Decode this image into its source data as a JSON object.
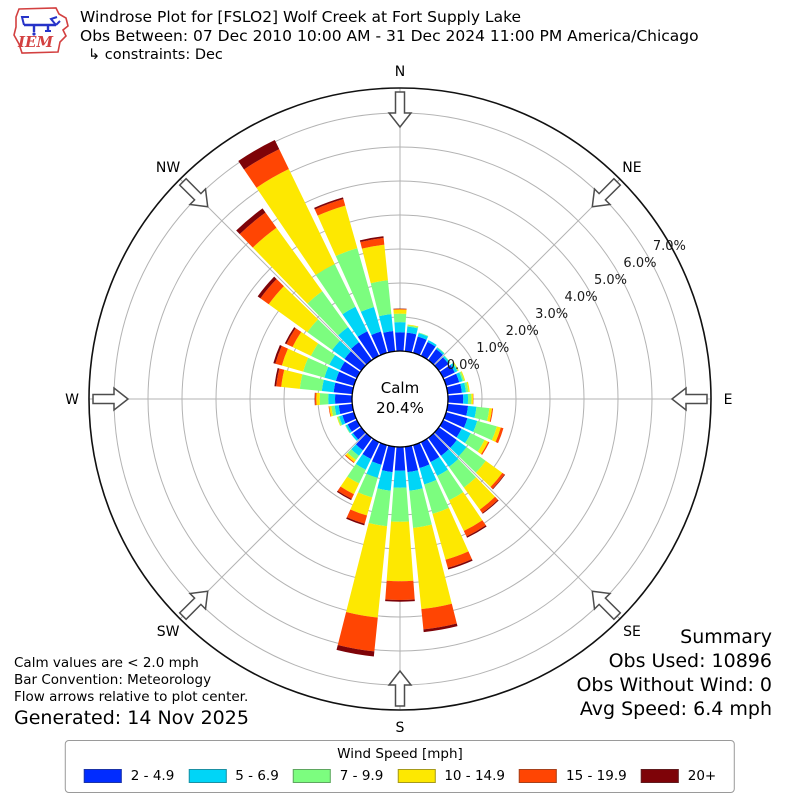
{
  "header": {
    "logo_text": "IEM",
    "title": "Windrose Plot for [FSLO2] Wolf Creek at Fort Supply Lake",
    "subtitle": "Obs Between: 07 Dec 2010 10:00 AM - 31 Dec 2024 11:00 PM America/Chicago",
    "constraint": "↳ constraints: Dec"
  },
  "chart_data": {
    "type": "windrose (stacked polar bar)",
    "units": "percent frequency",
    "legend_title": "Wind Speed [mph]",
    "calm": {
      "label": "Calm",
      "value": "20.4%"
    },
    "ring_labels": [
      "0.0%",
      "1.0%",
      "2.0%",
      "3.0%",
      "4.0%",
      "5.0%",
      "6.0%",
      "7.0%"
    ],
    "ring_step_percent": 1.0,
    "max_ring_percent": 7.0,
    "compass_labels": [
      "N",
      "NE",
      "E",
      "SE",
      "S",
      "SW",
      "W",
      "NW"
    ],
    "bins": [
      {
        "label": "2 - 4.9",
        "color": "#012cff"
      },
      {
        "label": "5 - 6.9",
        "color": "#00d5f7"
      },
      {
        "label": "7 - 9.9",
        "color": "#7cfd7f"
      },
      {
        "label": "10 - 14.9",
        "color": "#fde801"
      },
      {
        "label": "15 - 19.9",
        "color": "#ff4503"
      },
      {
        "label": "20+",
        "color": "#7e0308"
      }
    ],
    "directions_deg": [
      0,
      10,
      20,
      30,
      40,
      50,
      60,
      70,
      80,
      90,
      100,
      110,
      120,
      130,
      140,
      150,
      160,
      170,
      180,
      190,
      200,
      210,
      220,
      230,
      240,
      250,
      260,
      270,
      280,
      290,
      300,
      310,
      320,
      330,
      340,
      350
    ],
    "series_percent": [
      [
        0.55,
        0.3,
        0.25,
        0.12,
        0.02,
        0.01
      ],
      [
        0.55,
        0.18,
        0.04,
        0.02,
        0.0,
        0.0
      ],
      [
        0.5,
        0.1,
        0.02,
        0.0,
        0.0,
        0.0
      ],
      [
        0.45,
        0.06,
        0.0,
        0.0,
        0.0,
        0.0
      ],
      [
        0.4,
        0.05,
        0.02,
        0.0,
        0.0,
        0.0
      ],
      [
        0.35,
        0.05,
        0.02,
        0.0,
        0.0,
        0.0
      ],
      [
        0.38,
        0.08,
        0.03,
        0.02,
        0.0,
        0.0
      ],
      [
        0.4,
        0.1,
        0.05,
        0.03,
        0.0,
        0.0
      ],
      [
        0.42,
        0.12,
        0.07,
        0.04,
        0.0,
        0.0
      ],
      [
        0.45,
        0.14,
        0.1,
        0.05,
        0.01,
        0.0
      ],
      [
        0.6,
        0.25,
        0.38,
        0.08,
        0.03,
        0.0
      ],
      [
        0.65,
        0.3,
        0.6,
        0.12,
        0.08,
        0.0
      ],
      [
        0.6,
        0.3,
        0.45,
        0.12,
        0.04,
        0.0
      ],
      [
        0.65,
        0.35,
        0.7,
        0.6,
        0.08,
        0.02
      ],
      [
        0.65,
        0.4,
        0.75,
        0.8,
        0.12,
        0.03
      ],
      [
        0.65,
        0.45,
        0.8,
        1.0,
        0.18,
        0.04
      ],
      [
        0.7,
        0.5,
        0.9,
        1.4,
        0.25,
        0.05
      ],
      [
        0.75,
        0.55,
        1.1,
        2.4,
        0.6,
        0.08
      ],
      [
        0.7,
        0.5,
        1.0,
        1.75,
        0.55,
        0.05
      ],
      [
        0.75,
        0.55,
        1.05,
        2.7,
        1.0,
        0.15
      ],
      [
        0.6,
        0.4,
        0.6,
        0.55,
        0.25,
        0.05
      ],
      [
        0.55,
        0.35,
        0.45,
        0.35,
        0.15,
        0.04
      ],
      [
        0.45,
        0.2,
        0.15,
        0.08,
        0.03,
        0.0
      ],
      [
        0.3,
        0.06,
        0.0,
        0.0,
        0.0,
        0.0
      ],
      [
        0.3,
        0.06,
        0.02,
        0.0,
        0.0,
        0.0
      ],
      [
        0.35,
        0.1,
        0.05,
        0.02,
        0.0,
        0.0
      ],
      [
        0.4,
        0.12,
        0.1,
        0.06,
        0.02,
        0.0
      ],
      [
        0.5,
        0.2,
        0.25,
        0.1,
        0.04,
        0.01
      ],
      [
        0.55,
        0.35,
        0.65,
        0.55,
        0.15,
        0.05
      ],
      [
        0.55,
        0.35,
        0.65,
        0.65,
        0.2,
        0.06
      ],
      [
        0.55,
        0.35,
        0.6,
        0.6,
        0.2,
        0.05
      ],
      [
        0.6,
        0.45,
        0.9,
        1.4,
        0.3,
        0.1
      ],
      [
        0.65,
        0.55,
        1.3,
        2.3,
        0.55,
        0.15
      ],
      [
        0.8,
        0.8,
        1.4,
        3.1,
        0.65,
        0.3
      ],
      [
        0.65,
        0.75,
        1.8,
        1.3,
        0.2,
        0.05
      ],
      [
        0.6,
        0.5,
        1.0,
        1.05,
        0.2,
        0.05
      ]
    ]
  },
  "footer": {
    "notes": [
      "Calm values are < 2.0 mph",
      "Bar Convention: Meteorology",
      "Flow arrows relative to plot center."
    ],
    "generated": "Generated: 14 Nov 2025"
  },
  "summary": {
    "title": "Summary",
    "lines": [
      "Obs Used: 10896",
      "Obs Without Wind: 0",
      "Avg Speed: 6.4 mph"
    ]
  }
}
